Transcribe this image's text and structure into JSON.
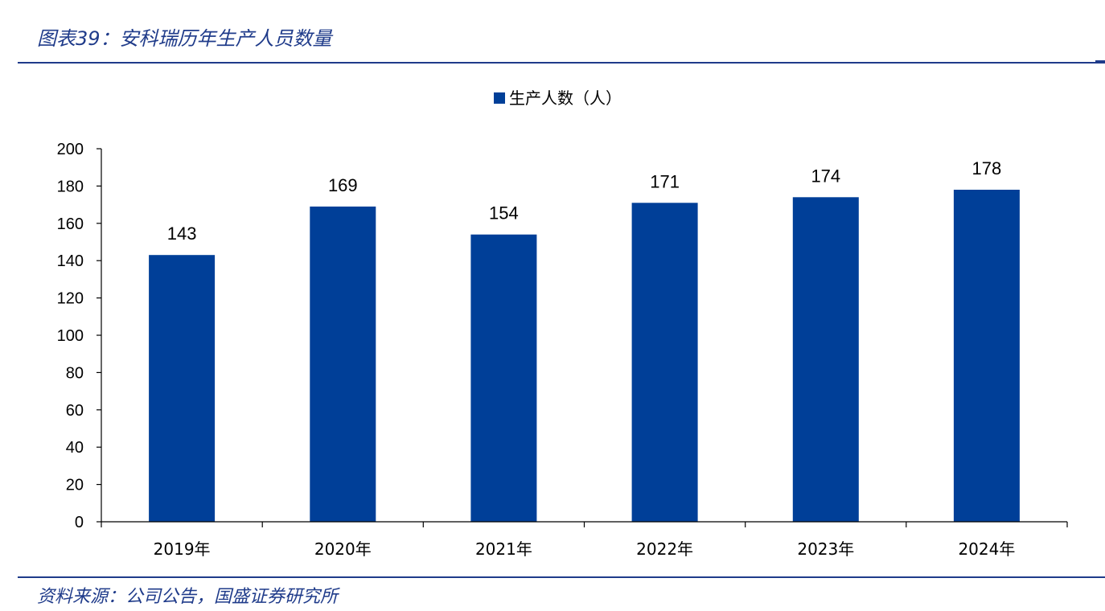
{
  "figure": {
    "title": "图表39：安科瑞历年生产人员数量",
    "source": "资料来源：公司公告，国盛证券研究所"
  },
  "colors": {
    "bar": "#003f98",
    "rule": "#1f3b8a",
    "axis": "#000000"
  },
  "chart_data": {
    "type": "bar",
    "categories": [
      "2019年",
      "2020年",
      "2021年",
      "2022年",
      "2023年",
      "2024年"
    ],
    "series": [
      {
        "name": "生产人数（人）",
        "values": [
          143,
          169,
          154,
          171,
          174,
          178
        ]
      }
    ],
    "yticks": [
      "0",
      "20",
      "40",
      "60",
      "80",
      "100",
      "120",
      "140",
      "160",
      "180",
      "200"
    ],
    "ylim": [
      0,
      200
    ],
    "title": "",
    "xlabel": "",
    "ylabel": "",
    "legend": "top-center",
    "grid": false,
    "data_labels": true
  }
}
